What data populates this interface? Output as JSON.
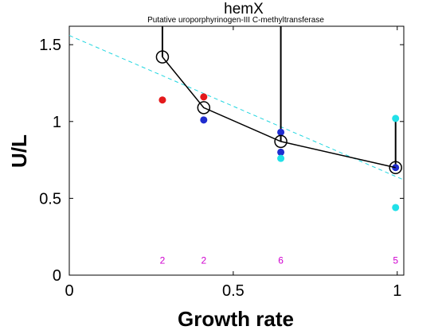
{
  "chart_data": {
    "type": "scatter",
    "title": "hemX",
    "subtitle": "Putative uroporphyrinogen-III C-methyltransferase",
    "xlabel": "Growth rate",
    "ylabel": "U/L",
    "xlim": [
      0,
      1.02
    ],
    "ylim": [
      0,
      1.62
    ],
    "xticks": [
      0,
      0.5,
      1
    ],
    "xtick_labels": [
      "0",
      "0.5",
      "1"
    ],
    "yticks": [
      0,
      0.5,
      1,
      1.5
    ],
    "ytick_labels": [
      "0",
      "0.5",
      "1",
      "1.5"
    ],
    "grid": false,
    "colors": {
      "red": "#e41a1c",
      "blue": "#1f2ccf",
      "cyan": "#21e0e8",
      "mean": "#000000",
      "fit": "#21d6e0",
      "count": "#d000d0"
    },
    "mean_series": {
      "x": [
        0.284,
        0.41,
        0.645,
        0.995
      ],
      "y": [
        1.42,
        1.09,
        0.87,
        0.7
      ]
    },
    "error_upper": [
      1.62,
      1.09,
      1.62,
      1.02
    ],
    "error_lower": [
      1.42,
      1.09,
      0.87,
      0.7
    ],
    "fit_line": {
      "x": [
        0,
        1.02
      ],
      "y": [
        1.56,
        0.62
      ]
    },
    "points": [
      {
        "x": 0.284,
        "y": 1.14,
        "color": "red"
      },
      {
        "x": 0.41,
        "y": 1.16,
        "color": "red"
      },
      {
        "x": 0.41,
        "y": 1.01,
        "color": "blue"
      },
      {
        "x": 0.645,
        "y": 0.93,
        "color": "blue"
      },
      {
        "x": 0.645,
        "y": 0.8,
        "color": "blue"
      },
      {
        "x": 0.645,
        "y": 0.76,
        "color": "cyan"
      },
      {
        "x": 0.995,
        "y": 1.02,
        "color": "cyan"
      },
      {
        "x": 0.995,
        "y": 0.7,
        "color": "blue"
      },
      {
        "x": 0.995,
        "y": 0.44,
        "color": "cyan"
      }
    ],
    "counts": [
      {
        "x": 0.284,
        "label": "2"
      },
      {
        "x": 0.41,
        "label": "2"
      },
      {
        "x": 0.645,
        "label": "6"
      },
      {
        "x": 0.995,
        "label": "5"
      }
    ],
    "count_y": 0.1
  }
}
